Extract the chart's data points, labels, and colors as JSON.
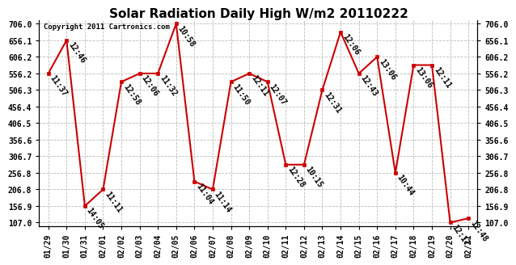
{
  "title": "Solar Radiation Daily High W/m2 20110222",
  "copyright": "Copyright 2011 Cartronics.com",
  "dates": [
    "01/29",
    "01/30",
    "01/31",
    "02/01",
    "02/02",
    "02/03",
    "02/04",
    "02/05",
    "02/06",
    "02/07",
    "02/08",
    "02/09",
    "02/10",
    "02/11",
    "02/12",
    "02/13",
    "02/14",
    "02/15",
    "02/16",
    "02/17",
    "02/18",
    "02/19",
    "02/20",
    "02/21"
  ],
  "values": [
    556.2,
    656.1,
    156.9,
    206.8,
    531.0,
    556.2,
    556.2,
    706.0,
    231.0,
    206.8,
    531.0,
    556.2,
    531.0,
    281.5,
    281.5,
    506.3,
    681.0,
    556.2,
    606.2,
    256.8,
    581.5,
    581.5,
    107.0,
    120.0
  ],
  "labels": [
    "11:37",
    "12:46",
    "14:05",
    "11:11",
    "12:58",
    "12:06",
    "11:32",
    "10:58",
    "11:04",
    "11:14",
    "11:50",
    "12:11",
    "12:07",
    "12:28",
    "10:15",
    "12:31",
    "12:06",
    "12:43",
    "13:06",
    "10:44",
    "13:06",
    "12:11",
    "12:17",
    "12:48"
  ],
  "yticks": [
    107.0,
    156.9,
    206.8,
    256.8,
    306.7,
    356.6,
    406.5,
    456.4,
    506.3,
    556.2,
    606.2,
    656.1,
    706.0
  ],
  "ymin": 97.0,
  "ymax": 716.0,
  "line_color": "#cc0000",
  "marker_color": "#cc0000",
  "bg_color": "#ffffff",
  "grid_color": "#bbbbbb",
  "title_fontsize": 11,
  "tick_fontsize": 7,
  "label_fontsize": 7,
  "copyright_fontsize": 6.5
}
